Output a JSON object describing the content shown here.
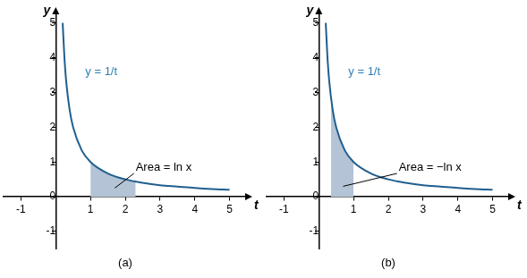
{
  "chart_data": [
    {
      "type": "line",
      "title": "(a)",
      "xlabel": "t",
      "ylabel": "y",
      "x": [
        0.2,
        0.25,
        0.3,
        0.4,
        0.5,
        0.75,
        1,
        1.5,
        2,
        2.5,
        3,
        3.5,
        4,
        4.5,
        5
      ],
      "values": [
        5,
        4,
        3.33,
        2.5,
        2,
        1.33,
        1,
        0.67,
        0.5,
        0.4,
        0.33,
        0.29,
        0.25,
        0.22,
        0.2
      ],
      "color": "#1f5f8f",
      "area": {
        "x": [
          1,
          1.25,
          1.5,
          1.75,
          2,
          2.3
        ],
        "values": [
          1,
          0.8,
          0.67,
          0.57,
          0.5,
          0.43
        ],
        "color": "#b4c3d6"
      },
      "xlim": [
        -1.5,
        5.5
      ],
      "ylim": [
        -1.5,
        5.3
      ],
      "xticks": [
        -1,
        1,
        2,
        3,
        4,
        5
      ],
      "yticks": [
        -1,
        0,
        1,
        2,
        3,
        4,
        5
      ],
      "grid": false,
      "annotations": [
        {
          "text": "y = 1/t",
          "x": 0.85,
          "y": 3.6,
          "color": "#2f7fb5"
        },
        {
          "text": "Area = ln x",
          "x": 2.3,
          "y": 0.85,
          "arrow_to": [
            1.7,
            0.25
          ]
        }
      ]
    },
    {
      "type": "line",
      "title": "(b)",
      "xlabel": "t",
      "ylabel": "y",
      "x": [
        0.2,
        0.25,
        0.3,
        0.4,
        0.5,
        0.75,
        1,
        1.5,
        2,
        2.5,
        3,
        3.5,
        4,
        4.5,
        5
      ],
      "values": [
        5,
        4,
        3.33,
        2.5,
        2,
        1.33,
        1,
        0.67,
        0.5,
        0.4,
        0.33,
        0.29,
        0.25,
        0.22,
        0.2
      ],
      "color": "#1f5f8f",
      "area": {
        "x": [
          0.35,
          0.4,
          0.5,
          0.6,
          0.75,
          1
        ],
        "values": [
          2.86,
          2.5,
          2,
          1.67,
          1.33,
          1
        ],
        "color": "#b4c3d6"
      },
      "xlim": [
        -1.5,
        5.5
      ],
      "ylim": [
        -1.5,
        5.3
      ],
      "xticks": [
        -1,
        1,
        2,
        3,
        4,
        5
      ],
      "yticks": [
        -1,
        0,
        1,
        2,
        3,
        4,
        5
      ],
      "grid": false,
      "annotations": [
        {
          "text": "y = 1/t",
          "x": 0.85,
          "y": 3.6,
          "color": "#2f7fb5"
        },
        {
          "text": "Area = −ln x",
          "x": 2.3,
          "y": 0.85,
          "arrow_to": [
            0.7,
            0.3
          ]
        }
      ]
    }
  ]
}
